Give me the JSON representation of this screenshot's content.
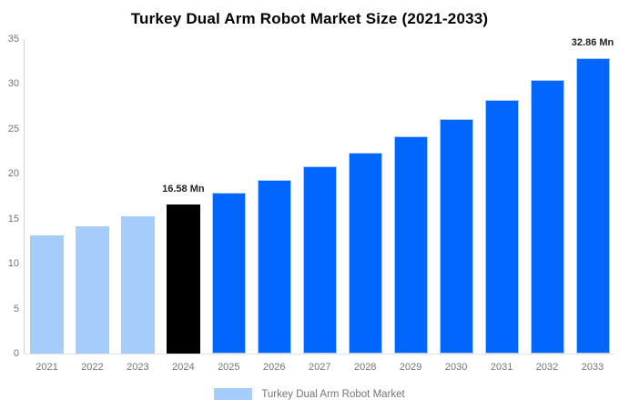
{
  "title": "Turkey Dual Arm Robot Market Size (2021-2033)",
  "legend": {
    "label": "Turkey Dual Arm Robot Market",
    "swatch_color": "#A4CDFB"
  },
  "colors": {
    "past": "#A4CDFB",
    "current": "#000000",
    "forecast": "#0066FE",
    "bar_border": "#AECBF5",
    "axis_line": "#D6D6D6",
    "baseline": "#E4E4E4",
    "tick_text": "#757575",
    "annotation_text": "#222222",
    "title_text": "#000000"
  },
  "chart_data": {
    "type": "bar",
    "title": "Turkey Dual Arm Robot Market Size (2021-2033)",
    "xlabel": "",
    "ylabel": "",
    "unit": "Mn",
    "grid": false,
    "legend_position": "bottom",
    "series_name": "Turkey Dual Arm Robot Market",
    "categories": [
      "2021",
      "2022",
      "2023",
      "2024",
      "2025",
      "2026",
      "2027",
      "2028",
      "2029",
      "2030",
      "2031",
      "2032",
      "2033"
    ],
    "values": [
      13.1,
      14.2,
      15.3,
      16.58,
      17.9,
      19.3,
      20.8,
      22.4,
      24.2,
      26.1,
      28.2,
      30.4,
      32.86
    ],
    "bar_styles": [
      "past",
      "past",
      "past",
      "current",
      "forecast",
      "forecast",
      "forecast",
      "forecast",
      "forecast",
      "forecast",
      "forecast",
      "forecast",
      "forecast"
    ],
    "ylim": [
      0,
      35
    ],
    "yticks": [
      0,
      5,
      10,
      15,
      20,
      25,
      30,
      35
    ],
    "annotations": [
      {
        "category": "2024",
        "text": "16.58 Mn"
      },
      {
        "category": "2033",
        "text": "32.86 Mn"
      }
    ]
  }
}
